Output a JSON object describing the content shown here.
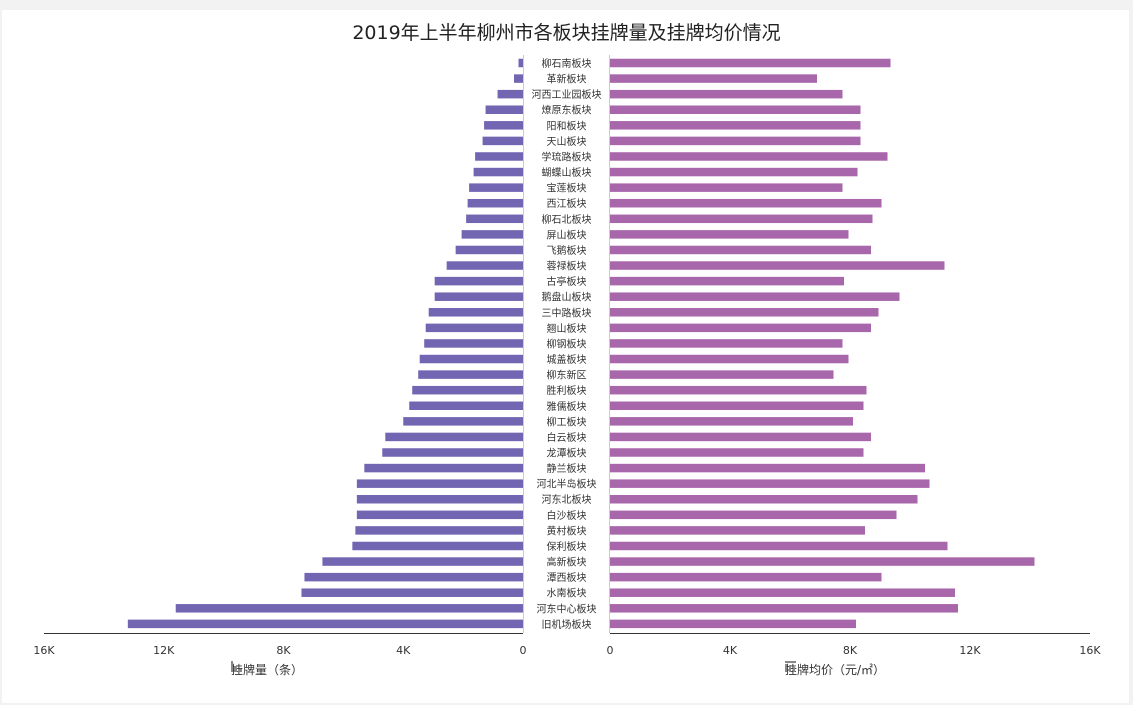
{
  "title": "2019年上半年柳州市各板块挂牌量及挂牌均价情况",
  "legend": {
    "left_label": "挂牌量（条）",
    "right_label": "挂牌均价（元/㎡）",
    "left_icon": "bar-chart-icon",
    "right_icon": "sort-chart-icon"
  },
  "colors": {
    "left_bar": "#7266b3",
    "right_bar": "#a866ab",
    "axis": "#333333",
    "text": "#333333"
  },
  "chart_data": {
    "type": "bar",
    "categories": [
      "柳石南板块",
      "革新板块",
      "河西工业园板块",
      "燎原东板块",
      "阳和板块",
      "天山板块",
      "学琉路板块",
      "蝴蝶山板块",
      "宝莲板块",
      "西江板块",
      "柳石北板块",
      "屏山板块",
      "飞鹅板块",
      "蓉禄板块",
      "古亭板块",
      "鹅盘山板块",
      "三中路板块",
      "翘山板块",
      "柳钢板块",
      "城盖板块",
      "柳东新区",
      "胜利板块",
      "雅儒板块",
      "柳工板块",
      "白云板块",
      "龙潭板块",
      "静兰板块",
      "河北半岛板块",
      "河东北板块",
      "白沙板块",
      "黄村板块",
      "保利板块",
      "高新板块",
      "潭西板块",
      "水南板块",
      "河东中心板块",
      "旧机场板块"
    ],
    "series": [
      {
        "name": "挂牌量（条）",
        "values": [
          150,
          300,
          850,
          1250,
          1300,
          1350,
          1600,
          1650,
          1800,
          1850,
          1900,
          2050,
          2250,
          2550,
          2950,
          2950,
          3150,
          3250,
          3300,
          3450,
          3500,
          3700,
          3800,
          4000,
          4600,
          4700,
          5300,
          5550,
          5550,
          5550,
          5600,
          5700,
          6700,
          7300,
          7400,
          11600,
          13200
        ]
      },
      {
        "name": "挂牌均价（元/㎡）",
        "values": [
          9350,
          6900,
          7750,
          8350,
          8350,
          8350,
          9250,
          8250,
          7750,
          9050,
          8750,
          7950,
          8700,
          11150,
          7800,
          9650,
          8950,
          8700,
          7750,
          7950,
          7450,
          8550,
          8450,
          8100,
          8700,
          8450,
          10500,
          10650,
          10250,
          9550,
          8500,
          11250,
          14150,
          9050,
          11500,
          11600,
          8200
        ]
      }
    ],
    "xlim_left": [
      16000,
      0
    ],
    "xlim_right": [
      0,
      16000
    ],
    "ticks_left": [
      "16K",
      "12K",
      "8K",
      "4K",
      "0"
    ],
    "ticks_right": [
      "0",
      "4K",
      "8K",
      "12K",
      "16K"
    ],
    "tick_values_left": [
      16000,
      12000,
      8000,
      4000,
      0
    ],
    "tick_values_right": [
      0,
      4000,
      8000,
      12000,
      16000
    ],
    "grid": false
  }
}
